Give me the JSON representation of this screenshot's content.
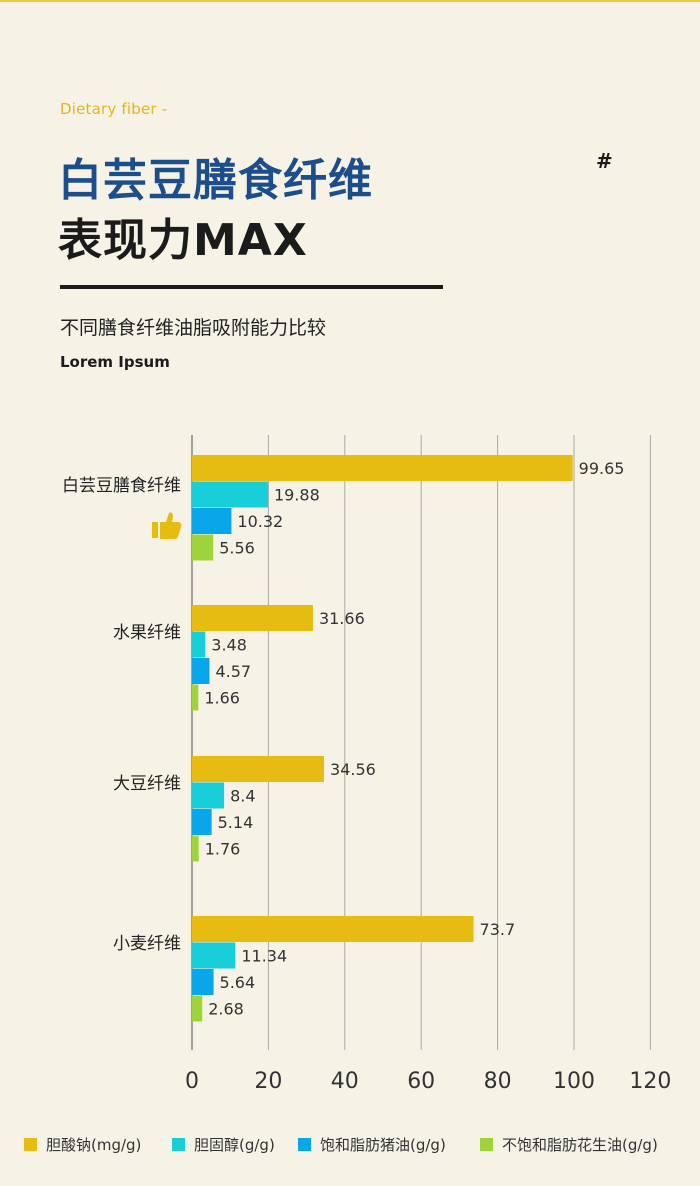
{
  "header": {
    "eyebrow": "Dietary fiber -",
    "title_line1": "白芸豆膳食纤维",
    "title_line2": "表现力MAX",
    "hash": "#",
    "subtitle": "不同膳食纤维油脂吸附能力比较",
    "tagline": "Lorem Ipsum"
  },
  "icons": {
    "thumbs_up": "thumbs-up-icon"
  },
  "colors": {
    "background": "#f6f3e6",
    "title_blue": "#1d4e8c",
    "accent_yellow": "#e8b417"
  },
  "chart_data": {
    "type": "bar",
    "orientation": "horizontal",
    "categories": [
      "白芸豆膳食纤维",
      "水果纤维",
      "大豆纤维",
      "小麦纤维"
    ],
    "series": [
      {
        "name": "胆酸钠(mg/g)",
        "color": "#e6bb12",
        "values": [
          99.65,
          31.66,
          34.56,
          73.7
        ]
      },
      {
        "name": "胆固醇(g/g)",
        "color": "#18cfd9",
        "values": [
          19.88,
          3.48,
          8.4,
          11.34
        ]
      },
      {
        "name": "饱和脂肪猪油(g/g)",
        "color": "#0aa6ea",
        "values": [
          10.32,
          4.57,
          5.14,
          5.64
        ]
      },
      {
        "name": "不饱和脂肪花生油(g/g)",
        "color": "#9ed43a",
        "values": [
          5.56,
          1.66,
          1.76,
          2.68
        ]
      }
    ],
    "value_labels": [
      [
        "99.65",
        "19.88",
        "10.32",
        "5.56"
      ],
      [
        "31.66",
        "3.48",
        "4.57",
        "1.66"
      ],
      [
        "34.56",
        "8.4",
        "5.14",
        "1.76"
      ],
      [
        "73.7",
        "11.34",
        "5.64",
        "2.68"
      ]
    ],
    "xlim": [
      0,
      120
    ],
    "xticks": [
      0,
      20,
      40,
      60,
      80,
      100,
      120
    ],
    "grid": true,
    "legend_position": "bottom"
  }
}
